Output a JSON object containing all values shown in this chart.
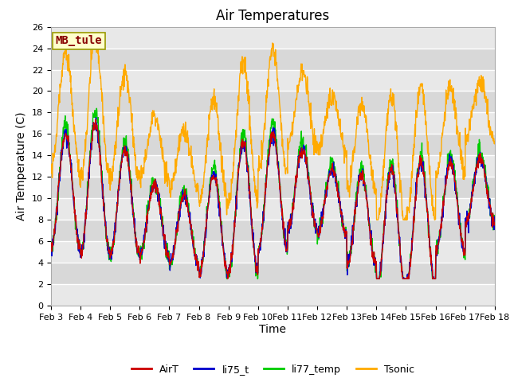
{
  "title": "Air Temperatures",
  "xlabel": "Time",
  "ylabel": "Air Temperature (C)",
  "ylim": [
    0,
    26
  ],
  "yticks": [
    0,
    2,
    4,
    6,
    8,
    10,
    12,
    14,
    16,
    18,
    20,
    22,
    24,
    26
  ],
  "xtick_labels": [
    "Feb 3",
    "Feb 4",
    "Feb 5",
    "Feb 6",
    "Feb 7",
    "Feb 8",
    "Feb 9",
    "Feb 10",
    "Feb 11",
    "Feb 12",
    "Feb 13",
    "Feb 14",
    "Feb 15",
    "Feb 16",
    "Feb 17",
    "Feb 18"
  ],
  "n_days": 15,
  "series_colors": {
    "AirT": "#cc0000",
    "li75_t": "#0000cc",
    "li77_temp": "#00cc00",
    "Tsonic": "#ffaa00"
  },
  "annotation_text": "MB_tule",
  "annotation_color": "#880000",
  "annotation_bg": "#ffffcc",
  "annotation_edge": "#999900",
  "bg_color": "#ffffff",
  "band_colors": [
    "#e8e8e8",
    "#d8d8d8"
  ],
  "grid_color": "#ffffff",
  "title_fontsize": 12,
  "axis_label_fontsize": 10,
  "tick_fontsize": 8,
  "legend_fontsize": 9
}
